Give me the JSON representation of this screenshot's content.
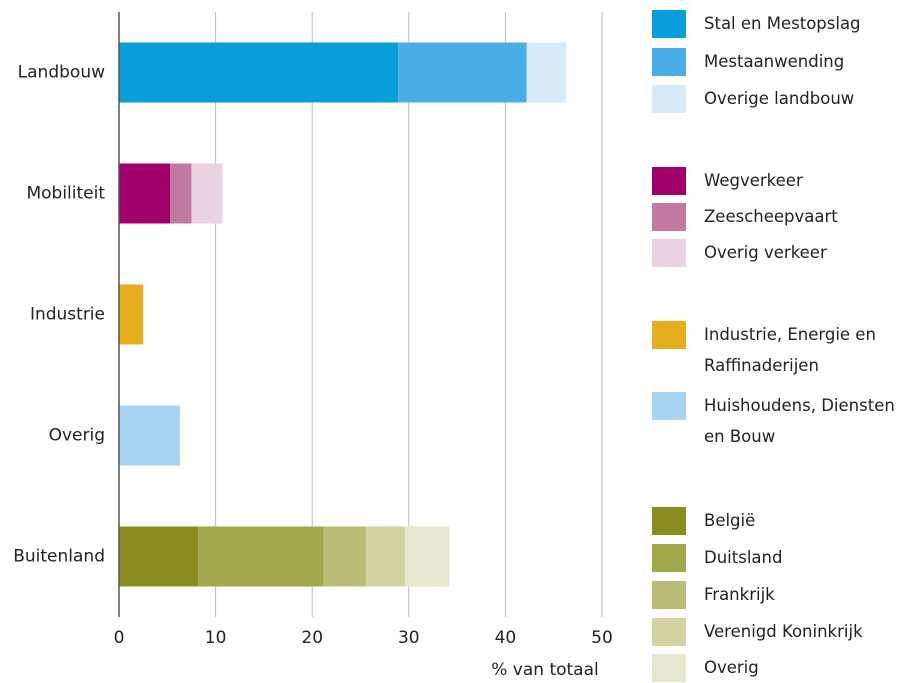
{
  "chart_data": {
    "type": "stacked_barh",
    "categories": [
      "Landbouw",
      "Mobiliteit",
      "Industrie",
      "Overig",
      "Buitenland"
    ],
    "series": [
      {
        "name": "Stal en Mestopslag",
        "color": "#0a9ddb",
        "values": [
          28.9,
          null,
          null,
          null,
          null
        ]
      },
      {
        "name": "Mestaanwending",
        "color": "#4aaee6",
        "values": [
          13.3,
          null,
          null,
          null,
          null
        ]
      },
      {
        "name": "Overige landbouw",
        "color": "#d6eaf8",
        "values": [
          4.1,
          null,
          null,
          null,
          null
        ]
      },
      {
        "name": "Wegverkeer",
        "color": "#a0006a",
        "values": [
          null,
          5.3,
          null,
          null,
          null
        ]
      },
      {
        "name": "Zeescheepvaart",
        "color": "#c27aa3",
        "values": [
          null,
          2.2,
          null,
          null,
          null
        ]
      },
      {
        "name": "Overig verkeer",
        "color": "#ead2e2",
        "values": [
          null,
          3.2,
          null,
          null,
          null
        ]
      },
      {
        "name": "Industrie, Energie en Raffinaderijen",
        "color": "#e6ad1f",
        "values": [
          null,
          null,
          2.5,
          null,
          null
        ]
      },
      {
        "name": "Huishoudens, Diensten en Bouw",
        "color": "#a9d4f3",
        "values": [
          null,
          null,
          null,
          6.3,
          null
        ]
      },
      {
        "name": "België",
        "color": "#8a8c1f",
        "values": [
          null,
          null,
          null,
          null,
          8.2
        ]
      },
      {
        "name": "Duitsland",
        "color": "#a2a84b",
        "values": [
          null,
          null,
          null,
          null,
          13.0
        ]
      },
      {
        "name": "Frankrijk",
        "color": "#bbbb78",
        "values": [
          null,
          null,
          null,
          null,
          4.4
        ]
      },
      {
        "name": "Verenigd Koninkrijk",
        "color": "#d3d2a1",
        "values": [
          null,
          null,
          null,
          null,
          4.0
        ]
      },
      {
        "name": "Overig",
        "color": "#e7e6cf",
        "values": [
          null,
          null,
          null,
          null,
          4.6
        ]
      }
    ],
    "xlabel": "% van totaal",
    "xlim": [
      0,
      50
    ],
    "xticks": [
      0,
      10,
      20,
      30,
      40,
      50
    ],
    "grid": true
  }
}
